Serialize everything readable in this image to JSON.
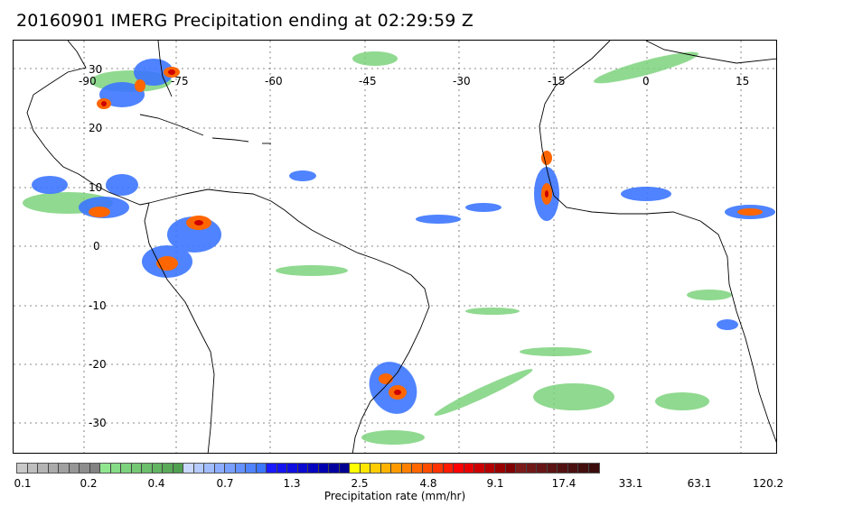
{
  "title": "20160901 IMERG Precipitation ending at 02:29:59 Z",
  "map": {
    "longitude_labels": [
      "-90",
      "-75",
      "-60",
      "-45",
      "-30",
      "-15",
      "0",
      "15"
    ],
    "latitude_labels": [
      "30",
      "20",
      "10",
      "0",
      "-10",
      "-20",
      "-30"
    ],
    "gridlines": "dotted",
    "colors": {
      "coastline": "#000000",
      "frame": "#000000",
      "grid": "#666666"
    }
  },
  "colorbar": {
    "tick_labels": [
      "0.1",
      "0.2",
      "0.4",
      "0.7",
      "1.3",
      "2.5",
      "4.8",
      "9.1",
      "17.4",
      "33.1",
      "63.1",
      "120.2"
    ],
    "label": "Precipitation rate (mm/hr)",
    "colors": [
      "#c8c8c8",
      "#bebebe",
      "#b4b4b4",
      "#aaaaaa",
      "#a0a0a0",
      "#969696",
      "#8c8c8c",
      "#828282",
      "#8fe68f",
      "#86dc86",
      "#7dd27d",
      "#74c874",
      "#6bbe6b",
      "#62b462",
      "#5aaa5a",
      "#51a051",
      "#c8d8ff",
      "#b4caff",
      "#a0bcff",
      "#8cadff",
      "#789fff",
      "#6491ff",
      "#5083ff",
      "#3c75ff",
      "#1a1aff",
      "#1414f0",
      "#0f0fe0",
      "#0a0ad0",
      "#0505c0",
      "#0000b0",
      "#0000a0",
      "#000090",
      "#ffff00",
      "#ffe600",
      "#ffcc00",
      "#ffb300",
      "#ff9900",
      "#ff8000",
      "#ff6600",
      "#ff4d00",
      "#ff3300",
      "#ff1a00",
      "#ff0000",
      "#e60000",
      "#cc0000",
      "#b30000",
      "#990000",
      "#800000",
      "#7a1a1a",
      "#701818",
      "#661616",
      "#5c1414",
      "#521212",
      "#4a1010",
      "#420e0e",
      "#3a0c0c"
    ]
  }
}
